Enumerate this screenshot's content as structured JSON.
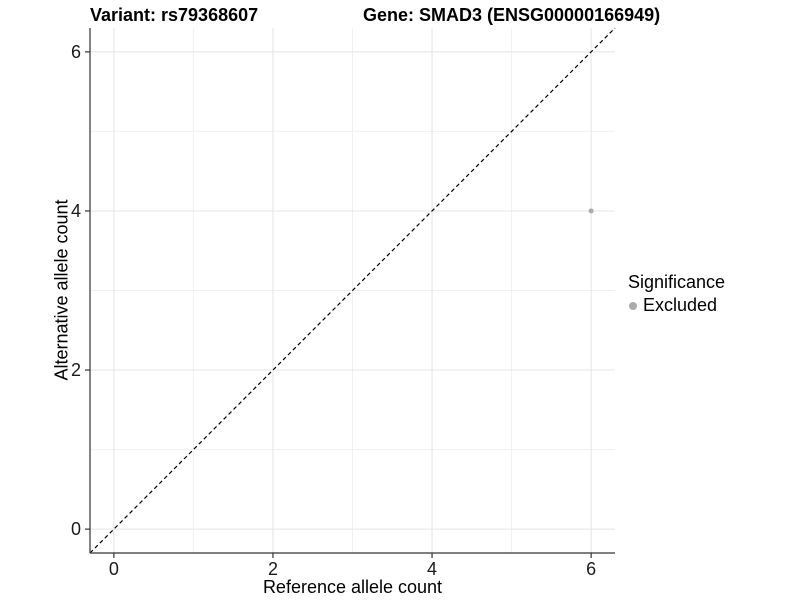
{
  "titles": {
    "variant": "Variant: rs79368607",
    "gene": "Gene: SMAD3 (ENSG00000166949)"
  },
  "legend": {
    "title": "Significance",
    "items": [
      {
        "label": "Excluded",
        "color": "#ABABAB"
      }
    ]
  },
  "colors": {
    "background": "#ffffff",
    "grid_major": "#E4E4E4",
    "grid_minor": "#F0F0F0",
    "axis_line": "#333333",
    "tick_mark": "#333333",
    "tick_label": "#1a1a1a",
    "reference_line": "#000000",
    "point_excluded": "#ABABAB"
  },
  "chart_data": {
    "type": "scatter",
    "title": "Variant: rs79368607 | Gene: SMAD3 (ENSG00000166949)",
    "xlabel": "Reference allele count",
    "ylabel": "Alternative allele count",
    "xlim": [
      -0.3,
      6.3
    ],
    "ylim": [
      -0.3,
      6.3
    ],
    "xticks": [
      0,
      2,
      4,
      6
    ],
    "yticks": [
      0,
      2,
      4,
      6
    ],
    "xticks_minor": [
      1,
      3,
      5
    ],
    "yticks_minor": [
      1,
      3,
      5
    ],
    "grid": true,
    "legend_position": "right",
    "series": [
      {
        "name": "Excluded",
        "color": "#ABABAB",
        "points": [
          {
            "x": 6,
            "y": 4
          }
        ]
      }
    ],
    "reference_line": {
      "type": "identity",
      "label": "y = x",
      "style": "dashed",
      "color": "#000000",
      "x1": -0.3,
      "y1": -0.3,
      "x2": 6.3,
      "y2": 6.3
    }
  }
}
